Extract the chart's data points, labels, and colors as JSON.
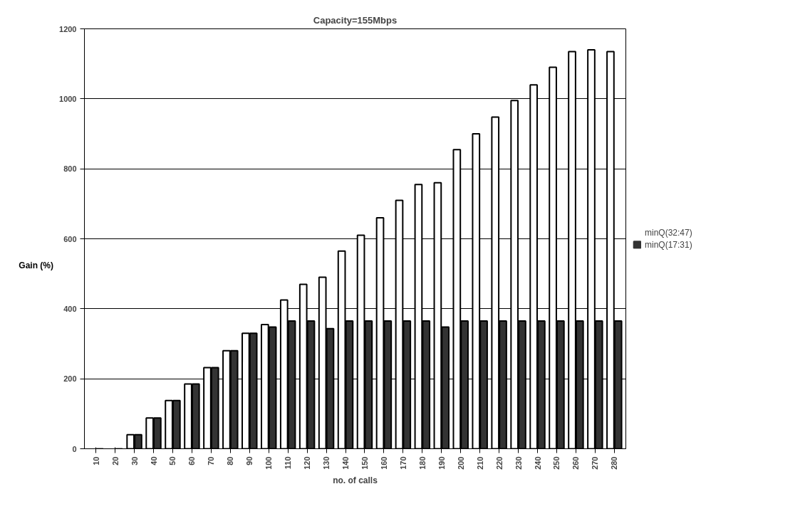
{
  "chart_data": {
    "type": "bar",
    "title": "Capacity=155Mbps",
    "xlabel": "no. of calls",
    "ylabel": "Gain (%)",
    "categories": [
      "10",
      "20",
      "30",
      "40",
      "50",
      "60",
      "70",
      "80",
      "90",
      "100",
      "110",
      "120",
      "130",
      "140",
      "150",
      "160",
      "170",
      "180",
      "190",
      "200",
      "210",
      "220",
      "230",
      "240",
      "250",
      "260",
      "270",
      "280"
    ],
    "series": [
      {
        "name": "minQ(32:47)",
        "color": "#ffffff",
        "values": [
          0,
          0,
          40,
          88,
          138,
          185,
          232,
          280,
          330,
          355,
          425,
          470,
          490,
          565,
          610,
          660,
          710,
          755,
          760,
          855,
          900,
          948,
          995,
          1040,
          1090,
          1135,
          1140,
          1135
        ]
      },
      {
        "name": "minQ(17:31)",
        "color": "#333333",
        "values": [
          0,
          0,
          40,
          88,
          138,
          185,
          232,
          280,
          330,
          348,
          365,
          365,
          343,
          365,
          365,
          365,
          365,
          365,
          348,
          365,
          365,
          365,
          365,
          365,
          365,
          365,
          365,
          365
        ]
      }
    ],
    "ylim": [
      0,
      1200
    ],
    "yticks": [
      0,
      200,
      400,
      600,
      800,
      1000,
      1200
    ],
    "grid": "y",
    "legend": "right"
  }
}
